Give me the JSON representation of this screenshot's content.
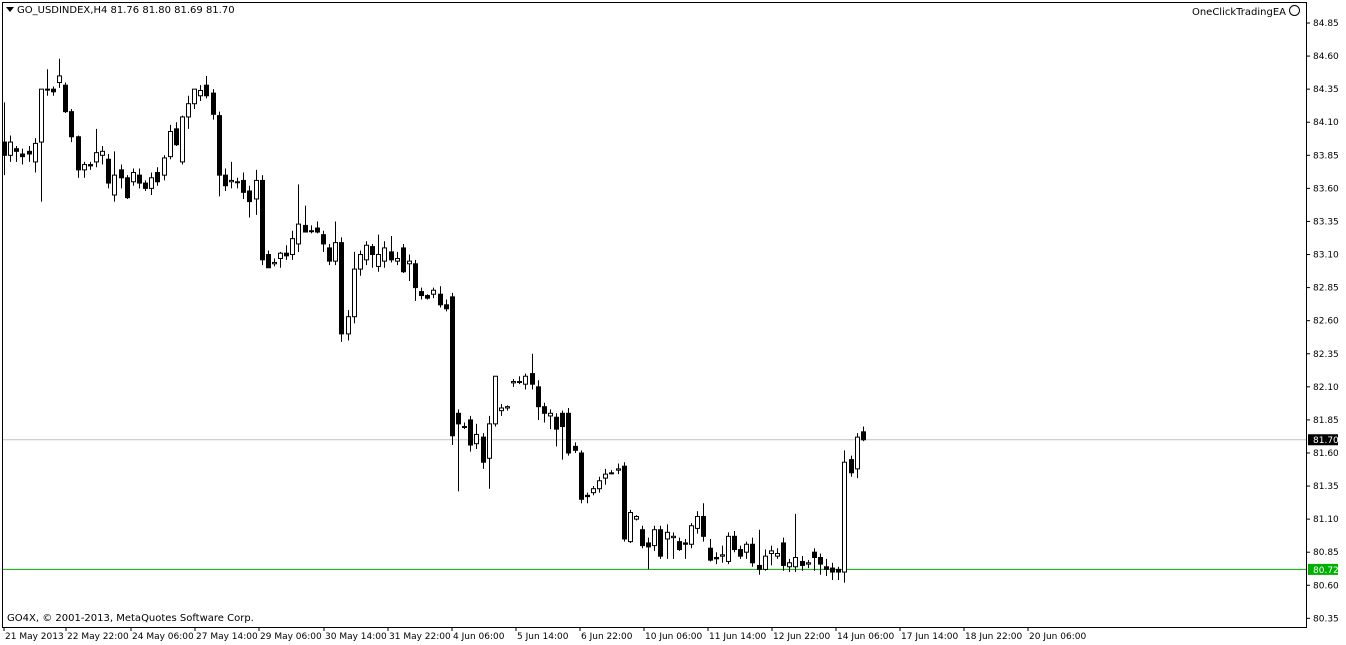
{
  "window": {
    "symbol_line": "GO_USDINDEX,H4  81.76 81.80 81.69 81.70",
    "expert_advisor": "OneClickTradingEA",
    "copyright": "GO4X, © 2001-2013, MetaQuotes Software Corp."
  },
  "chart_data": {
    "type": "candlestick",
    "symbol": "GO_USDINDEX",
    "timeframe": "H4",
    "ylim": [
      80.3,
      85.0
    ],
    "y_ticks": [
      "84.85",
      "84.60",
      "84.35",
      "84.10",
      "83.85",
      "83.60",
      "83.35",
      "83.10",
      "82.85",
      "82.60",
      "82.35",
      "82.10",
      "81.85",
      "81.60",
      "81.35",
      "81.10",
      "80.85",
      "80.60",
      "80.35"
    ],
    "x_tick_labels": [
      "21 May 2013",
      "22 May 22:00",
      "24 May 06:00",
      "27 May 14:00",
      "29 May 06:00",
      "30 May 14:00",
      "31 May 22:00",
      "4 Jun 06:00",
      "5 Jun 14:00",
      "6 Jun 22:00",
      "10 Jun 06:00",
      "11 Jun 14:00",
      "12 Jun 22:00",
      "14 Jun 06:00",
      "17 Jun 14:00",
      "18 Jun 22:00",
      "20 Jun 06:00"
    ],
    "current_price": {
      "value": 81.7,
      "label": "81.70",
      "color": "#c0c0c0"
    },
    "level_line": {
      "value": 80.72,
      "label": "80.72",
      "color": "#00b000"
    },
    "candles": [
      [
        83.95,
        84.25,
        83.7,
        83.85
      ],
      [
        83.85,
        84.0,
        83.8,
        83.95
      ],
      [
        83.9,
        83.92,
        83.8,
        83.88
      ],
      [
        83.86,
        83.9,
        83.78,
        83.84
      ],
      [
        83.88,
        83.92,
        83.8,
        83.86
      ],
      [
        83.8,
        83.98,
        83.72,
        83.94
      ],
      [
        83.95,
        84.35,
        83.5,
        84.35
      ],
      [
        84.35,
        84.5,
        84.3,
        84.35
      ],
      [
        84.35,
        84.37,
        84.3,
        84.33
      ],
      [
        84.4,
        84.58,
        84.36,
        84.45
      ],
      [
        84.38,
        84.4,
        84.17,
        84.18
      ],
      [
        84.18,
        84.2,
        83.95,
        83.99
      ],
      [
        83.99,
        84.0,
        83.68,
        83.74
      ],
      [
        83.74,
        83.8,
        83.68,
        83.78
      ],
      [
        83.78,
        83.8,
        83.74,
        83.77
      ],
      [
        83.8,
        84.05,
        83.76,
        83.87
      ],
      [
        83.85,
        83.92,
        83.78,
        83.88
      ],
      [
        83.82,
        83.86,
        83.6,
        83.64
      ],
      [
        83.55,
        83.88,
        83.5,
        83.7
      ],
      [
        83.74,
        83.78,
        83.6,
        83.68
      ],
      [
        83.68,
        83.7,
        83.52,
        83.53
      ],
      [
        83.65,
        83.75,
        83.62,
        83.72
      ],
      [
        83.7,
        83.75,
        83.6,
        83.64
      ],
      [
        83.64,
        83.66,
        83.58,
        83.6
      ],
      [
        83.6,
        83.72,
        83.55,
        83.68
      ],
      [
        83.72,
        83.76,
        83.62,
        83.65
      ],
      [
        83.7,
        83.85,
        83.66,
        83.83
      ],
      [
        83.84,
        84.08,
        83.82,
        84.03
      ],
      [
        84.05,
        84.1,
        83.92,
        83.93
      ],
      [
        83.8,
        84.15,
        83.78,
        84.14
      ],
      [
        84.14,
        84.3,
        84.05,
        84.24
      ],
      [
        84.24,
        84.35,
        84.2,
        84.35
      ],
      [
        84.3,
        84.38,
        84.26,
        84.34
      ],
      [
        84.38,
        84.45,
        84.28,
        84.3
      ],
      [
        84.32,
        84.35,
        84.12,
        84.16
      ],
      [
        84.15,
        84.18,
        83.54,
        83.7
      ],
      [
        83.7,
        83.75,
        83.58,
        83.62
      ],
      [
        83.65,
        83.8,
        83.6,
        83.66
      ],
      [
        83.65,
        83.68,
        83.6,
        83.65
      ],
      [
        83.66,
        83.72,
        83.52,
        83.57
      ],
      [
        83.58,
        83.62,
        83.38,
        83.5
      ],
      [
        83.52,
        83.74,
        83.4,
        83.66
      ],
      [
        83.66,
        83.7,
        83.02,
        83.06
      ],
      [
        83.1,
        83.13,
        83.0,
        83.0
      ],
      [
        83.03,
        83.07,
        83.01,
        83.04
      ],
      [
        83.07,
        83.12,
        83.0,
        83.11
      ],
      [
        83.11,
        83.17,
        83.06,
        83.09
      ],
      [
        83.1,
        83.28,
        83.06,
        83.22
      ],
      [
        83.18,
        83.63,
        83.12,
        83.33
      ],
      [
        83.32,
        83.47,
        83.27,
        83.27
      ],
      [
        83.28,
        83.32,
        83.26,
        83.28
      ],
      [
        83.3,
        83.35,
        83.26,
        83.27
      ],
      [
        83.25,
        83.28,
        83.12,
        83.18
      ],
      [
        83.15,
        83.18,
        83.02,
        83.05
      ],
      [
        83.05,
        83.35,
        83.02,
        83.19
      ],
      [
        83.19,
        83.23,
        82.44,
        82.5
      ],
      [
        82.5,
        82.68,
        82.45,
        82.63
      ],
      [
        82.63,
        83.12,
        82.58,
        82.99
      ],
      [
        82.99,
        83.13,
        82.94,
        83.1
      ],
      [
        83.06,
        83.2,
        83.02,
        83.17
      ],
      [
        83.16,
        83.18,
        83.0,
        83.1
      ],
      [
        83.01,
        83.25,
        82.97,
        83.1
      ],
      [
        83.05,
        83.2,
        83.0,
        83.15
      ],
      [
        83.12,
        83.24,
        83.04,
        83.06
      ],
      [
        83.05,
        83.12,
        83.02,
        83.07
      ],
      [
        83.15,
        83.18,
        82.96,
        82.97
      ],
      [
        83.03,
        83.1,
        82.9,
        83.05
      ],
      [
        83.03,
        83.06,
        82.75,
        82.85
      ],
      [
        82.82,
        82.85,
        82.76,
        82.79
      ],
      [
        82.79,
        82.8,
        82.76,
        82.77
      ],
      [
        82.8,
        82.85,
        82.77,
        82.83
      ],
      [
        82.8,
        82.86,
        82.7,
        82.72
      ],
      [
        82.72,
        82.76,
        82.67,
        82.69
      ],
      [
        82.78,
        82.81,
        81.66,
        81.73
      ],
      [
        81.9,
        81.93,
        81.31,
        81.82
      ],
      [
        81.8,
        81.83,
        81.78,
        81.8
      ],
      [
        81.85,
        81.88,
        81.61,
        81.66
      ],
      [
        81.67,
        81.82,
        81.63,
        81.74
      ],
      [
        81.72,
        81.75,
        81.48,
        81.53
      ],
      [
        81.56,
        81.88,
        81.33,
        81.82
      ],
      [
        81.82,
        82.18,
        81.8,
        82.18
      ],
      [
        81.92,
        81.97,
        81.88,
        81.94
      ],
      [
        81.94,
        81.96,
        81.92,
        81.95
      ],
      [
        82.13,
        82.16,
        82.1,
        82.14
      ],
      [
        82.14,
        82.18,
        82.12,
        82.14
      ],
      [
        82.12,
        82.2,
        82.08,
        82.18
      ],
      [
        82.2,
        82.35,
        82.08,
        82.12
      ],
      [
        82.1,
        82.15,
        81.85,
        81.95
      ],
      [
        81.95,
        81.98,
        81.83,
        81.9
      ],
      [
        81.88,
        81.93,
        81.78,
        81.9
      ],
      [
        81.87,
        81.9,
        81.65,
        81.78
      ],
      [
        81.9,
        81.92,
        81.55,
        81.8
      ],
      [
        81.9,
        81.94,
        81.58,
        81.6
      ],
      [
        81.65,
        81.68,
        81.6,
        81.62
      ],
      [
        81.6,
        81.62,
        81.22,
        81.25
      ],
      [
        81.28,
        81.3,
        81.22,
        81.27
      ],
      [
        81.3,
        81.35,
        81.28,
        81.33
      ],
      [
        81.33,
        81.42,
        81.3,
        81.39
      ],
      [
        81.41,
        81.48,
        81.36,
        81.44
      ],
      [
        81.45,
        81.47,
        81.44,
        81.45
      ],
      [
        81.47,
        81.52,
        81.44,
        81.48
      ],
      [
        81.5,
        81.53,
        80.93,
        80.95
      ],
      [
        80.93,
        81.17,
        80.92,
        81.15
      ],
      [
        81.1,
        81.13,
        81.09,
        81.12
      ],
      [
        81.02,
        81.05,
        80.88,
        80.9
      ],
      [
        80.92,
        80.96,
        80.72,
        80.89
      ],
      [
        80.9,
        81.05,
        80.86,
        81.02
      ],
      [
        81.02,
        81.05,
        80.8,
        80.82
      ],
      [
        80.95,
        81.06,
        80.8,
        81.0
      ],
      [
        80.96,
        81.0,
        80.8,
        80.97
      ],
      [
        80.93,
        80.96,
        80.86,
        80.87
      ],
      [
        80.92,
        80.95,
        80.8,
        80.91
      ],
      [
        80.91,
        81.07,
        80.88,
        81.05
      ],
      [
        81.03,
        81.16,
        80.99,
        81.12
      ],
      [
        81.12,
        81.22,
        80.93,
        80.97
      ],
      [
        80.88,
        80.95,
        80.78,
        80.79
      ],
      [
        80.81,
        80.85,
        80.76,
        80.8
      ],
      [
        80.82,
        80.9,
        80.77,
        80.83
      ],
      [
        80.78,
        81.0,
        80.76,
        80.97
      ],
      [
        80.97,
        81.01,
        80.85,
        80.87
      ],
      [
        80.87,
        80.9,
        80.8,
        80.82
      ],
      [
        80.85,
        80.93,
        80.8,
        80.91
      ],
      [
        80.91,
        80.96,
        80.74,
        80.77
      ],
      [
        80.75,
        81.02,
        80.68,
        80.72
      ],
      [
        80.72,
        80.87,
        80.71,
        80.82
      ],
      [
        80.84,
        80.9,
        80.75,
        80.86
      ],
      [
        80.82,
        80.88,
        80.8,
        80.84
      ],
      [
        80.92,
        80.96,
        80.71,
        80.75
      ],
      [
        80.74,
        80.8,
        80.7,
        80.77
      ],
      [
        80.74,
        81.14,
        80.7,
        80.81
      ],
      [
        80.78,
        80.82,
        80.71,
        80.75
      ],
      [
        80.76,
        80.79,
        80.73,
        80.77
      ],
      [
        80.85,
        80.88,
        80.71,
        80.81
      ],
      [
        80.81,
        80.84,
        80.68,
        80.76
      ],
      [
        80.74,
        80.8,
        80.67,
        80.72
      ],
      [
        80.73,
        80.77,
        80.64,
        80.7
      ],
      [
        80.72,
        80.74,
        80.64,
        80.7
      ],
      [
        80.7,
        81.62,
        80.62,
        81.53
      ],
      [
        81.55,
        81.58,
        81.42,
        81.45
      ],
      [
        81.48,
        81.75,
        81.41,
        81.72
      ],
      [
        81.76,
        81.8,
        81.69,
        81.7
      ]
    ]
  }
}
